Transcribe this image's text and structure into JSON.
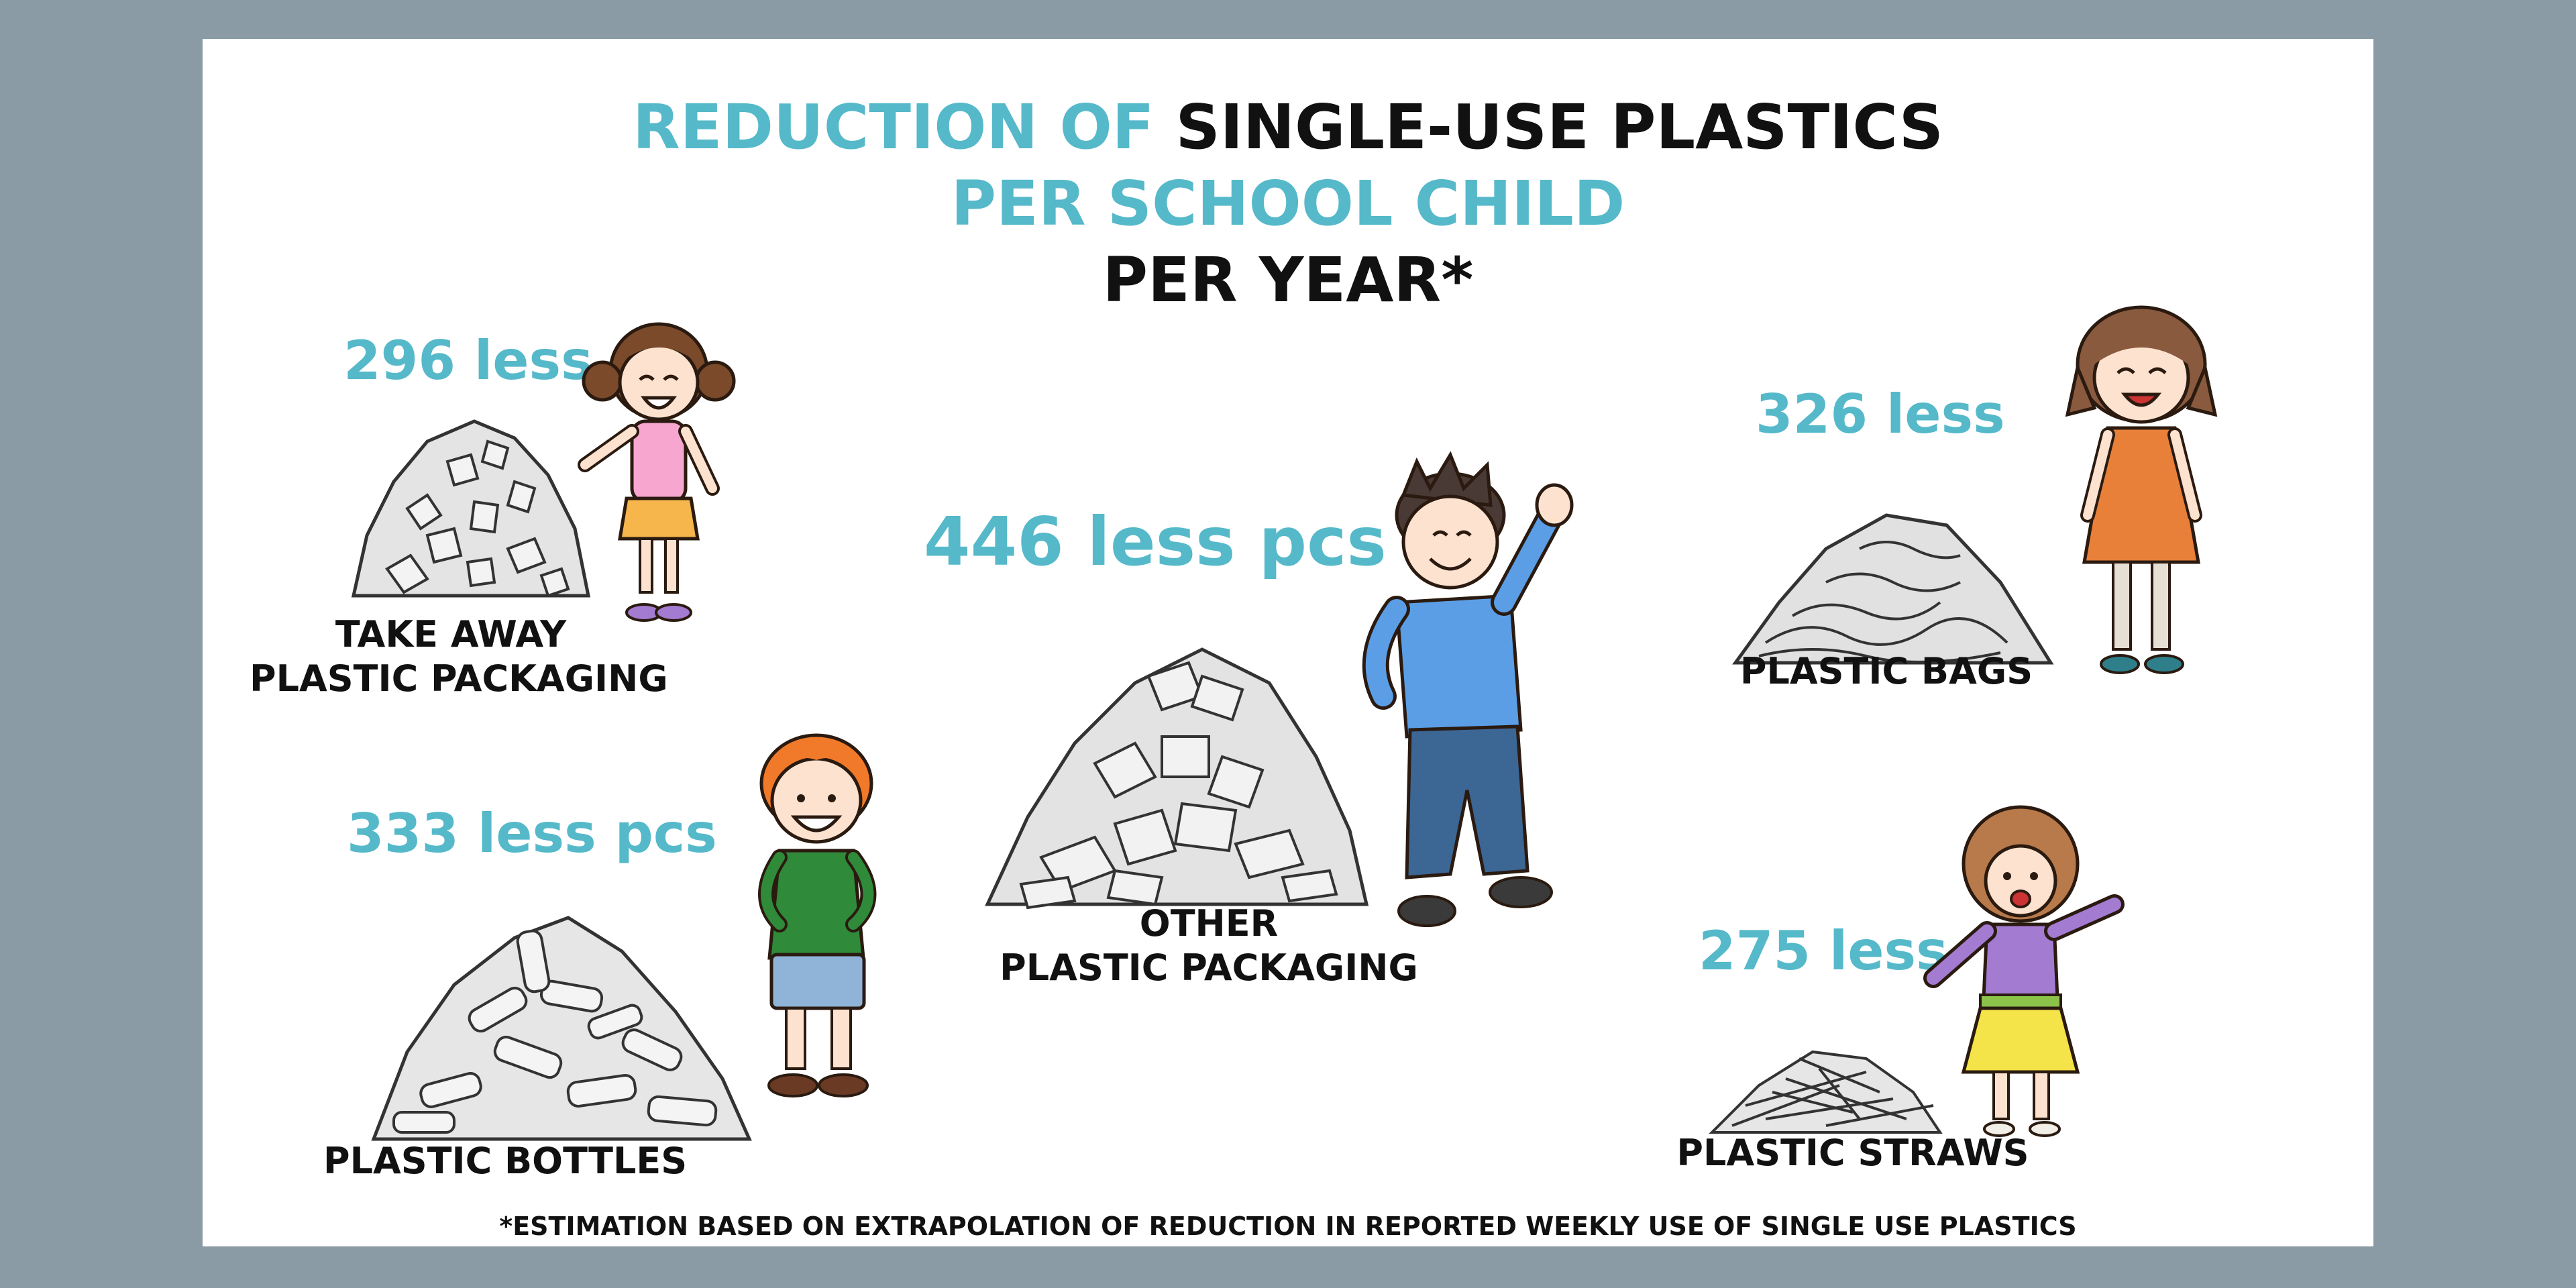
{
  "title": {
    "line1_accent": "REDUCTION OF",
    "line1_main": "SINGLE-USE PLASTICS",
    "line2": "PER SCHOOL CHILD",
    "line3": "PER YEAR*"
  },
  "items": {
    "takeaway": {
      "count": "296 less",
      "label_1": "TAKE AWAY",
      "label_2": "PLASTIC PACKAGING"
    },
    "bottles": {
      "count": "333 less pcs",
      "label_1": "PLASTIC BOTTLES"
    },
    "other": {
      "count": "446 less pcs",
      "label_1": "OTHER",
      "label_2": "PLASTIC PACKAGING"
    },
    "bags": {
      "count": "326 less",
      "label_1": "PLASTIC BAGS"
    },
    "straws": {
      "count": "275 less",
      "label_1": "PLASTIC STRAWS"
    }
  },
  "footnote": "*ESTIMATION BASED ON EXTRAPOLATION OF REDUCTION IN REPORTED WEEKLY USE OF SINGLE USE PLASTICS",
  "colors": {
    "background": "#8a9ba5",
    "card": "#ffffff",
    "accent": "#55b9ca",
    "text": "#111111"
  }
}
